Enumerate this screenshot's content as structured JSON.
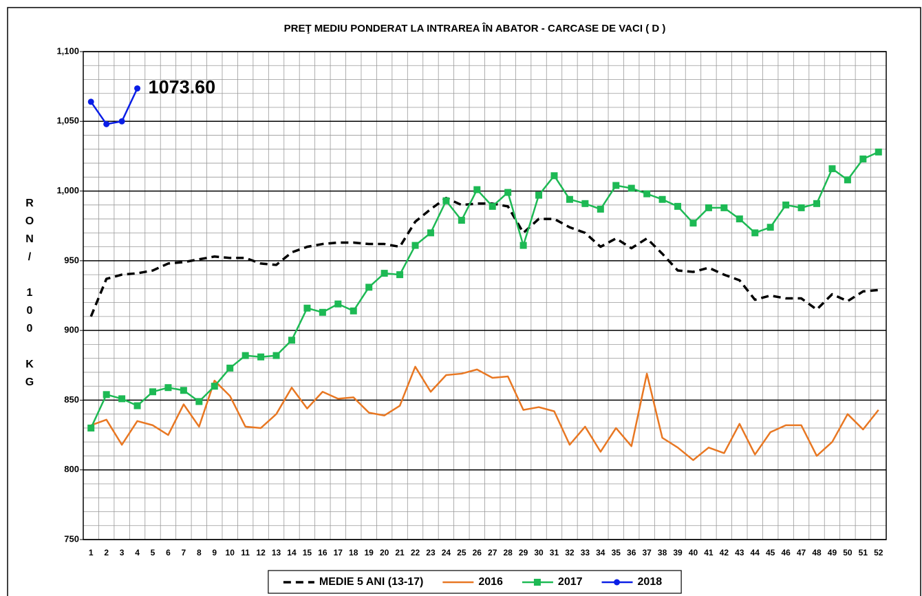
{
  "chart_data": {
    "type": "line",
    "title": "PREŢ MEDIU PONDERAT LA INTRAREA ÎN ABATOR - CARCASE DE VACI ( D )",
    "y_label": "RON/ 100 KG",
    "categories": [
      "1",
      "2",
      "3",
      "4",
      "5",
      "6",
      "7",
      "8",
      "9",
      "10",
      "11",
      "12",
      "13",
      "14",
      "15",
      "16",
      "17",
      "18",
      "19",
      "20",
      "21",
      "22",
      "23",
      "24",
      "25",
      "26",
      "27",
      "28",
      "29",
      "30",
      "31",
      "32",
      "33",
      "34",
      "35",
      "36",
      "37",
      "38",
      "39",
      "40",
      "41",
      "42",
      "43",
      "44",
      "45",
      "46",
      "47",
      "48",
      "49",
      "50",
      "51",
      "52"
    ],
    "ylim": [
      750,
      1100
    ],
    "yticks": [
      750,
      800,
      850,
      900,
      950,
      {
        "value": 1000,
        "label": "1,000"
      },
      {
        "value": 1050,
        "label": "1,050"
      },
      {
        "value": 1100,
        "label": "1,100"
      }
    ],
    "grid": true,
    "legend": "bottom",
    "series": [
      {
        "name": "MEDIE 5 ANI (13-17)",
        "color": "#000000",
        "dash": true,
        "marker": "none",
        "values": [
          910,
          937,
          940,
          941,
          943,
          948,
          949,
          951,
          953,
          952,
          952,
          948,
          947,
          956,
          960,
          962,
          963,
          963,
          962,
          962,
          960,
          978,
          987,
          995,
          990,
          991,
          991,
          989,
          970,
          980,
          980,
          974,
          970,
          960,
          966,
          959,
          966,
          955,
          943,
          942,
          945,
          940,
          936,
          922,
          925,
          923,
          923,
          915,
          926,
          921,
          928,
          929
        ]
      },
      {
        "name": "2016",
        "color": "#e87722",
        "marker": "none",
        "values": [
          832,
          836,
          818,
          835,
          832,
          825,
          847,
          831,
          864,
          853,
          831,
          830,
          840,
          859,
          844,
          856,
          851,
          852,
          841,
          839,
          846,
          874,
          856,
          868,
          869,
          872,
          866,
          867,
          843,
          845,
          842,
          818,
          831,
          813,
          830,
          817,
          869,
          823,
          816,
          807,
          816,
          812,
          833,
          811,
          827,
          832,
          832,
          810,
          820,
          840,
          829,
          843
        ]
      },
      {
        "name": "2017",
        "color": "#1db954",
        "marker": "square",
        "values": [
          830,
          854,
          851,
          846,
          856,
          859,
          857,
          849,
          860,
          873,
          882,
          881,
          882,
          893,
          916,
          913,
          919,
          914,
          931,
          941,
          940,
          961,
          970,
          993,
          979,
          1001,
          989,
          999,
          961,
          997,
          1011,
          994,
          991,
          987,
          1004,
          1002,
          998,
          994,
          989,
          977,
          988,
          988,
          980,
          970,
          974,
          990,
          988,
          991,
          1016,
          1008,
          1023,
          1028
        ]
      },
      {
        "name": "2018",
        "color": "#0a1ee6",
        "marker": "circle",
        "values": [
          1064,
          1048,
          1050,
          1073.6,
          null,
          null,
          null,
          null,
          null,
          null,
          null,
          null,
          null,
          null,
          null,
          null,
          null,
          null,
          null,
          null,
          null,
          null,
          null,
          null,
          null,
          null,
          null,
          null,
          null,
          null,
          null,
          null,
          null,
          null,
          null,
          null,
          null,
          null,
          null,
          null,
          null,
          null,
          null,
          null,
          null,
          null,
          null,
          null,
          null,
          null,
          null,
          null
        ],
        "value_labels": [
          null,
          null,
          null,
          "1073.60",
          null,
          null,
          null,
          null,
          null,
          null,
          null,
          null,
          null,
          null,
          null,
          null,
          null,
          null,
          null,
          null,
          null,
          null,
          null,
          null,
          null,
          null,
          null,
          null,
          null,
          null,
          null,
          null,
          null,
          null,
          null,
          null,
          null,
          null,
          null,
          null,
          null,
          null,
          null,
          null,
          null,
          null,
          null,
          null,
          null,
          null,
          null,
          null
        ]
      }
    ]
  }
}
